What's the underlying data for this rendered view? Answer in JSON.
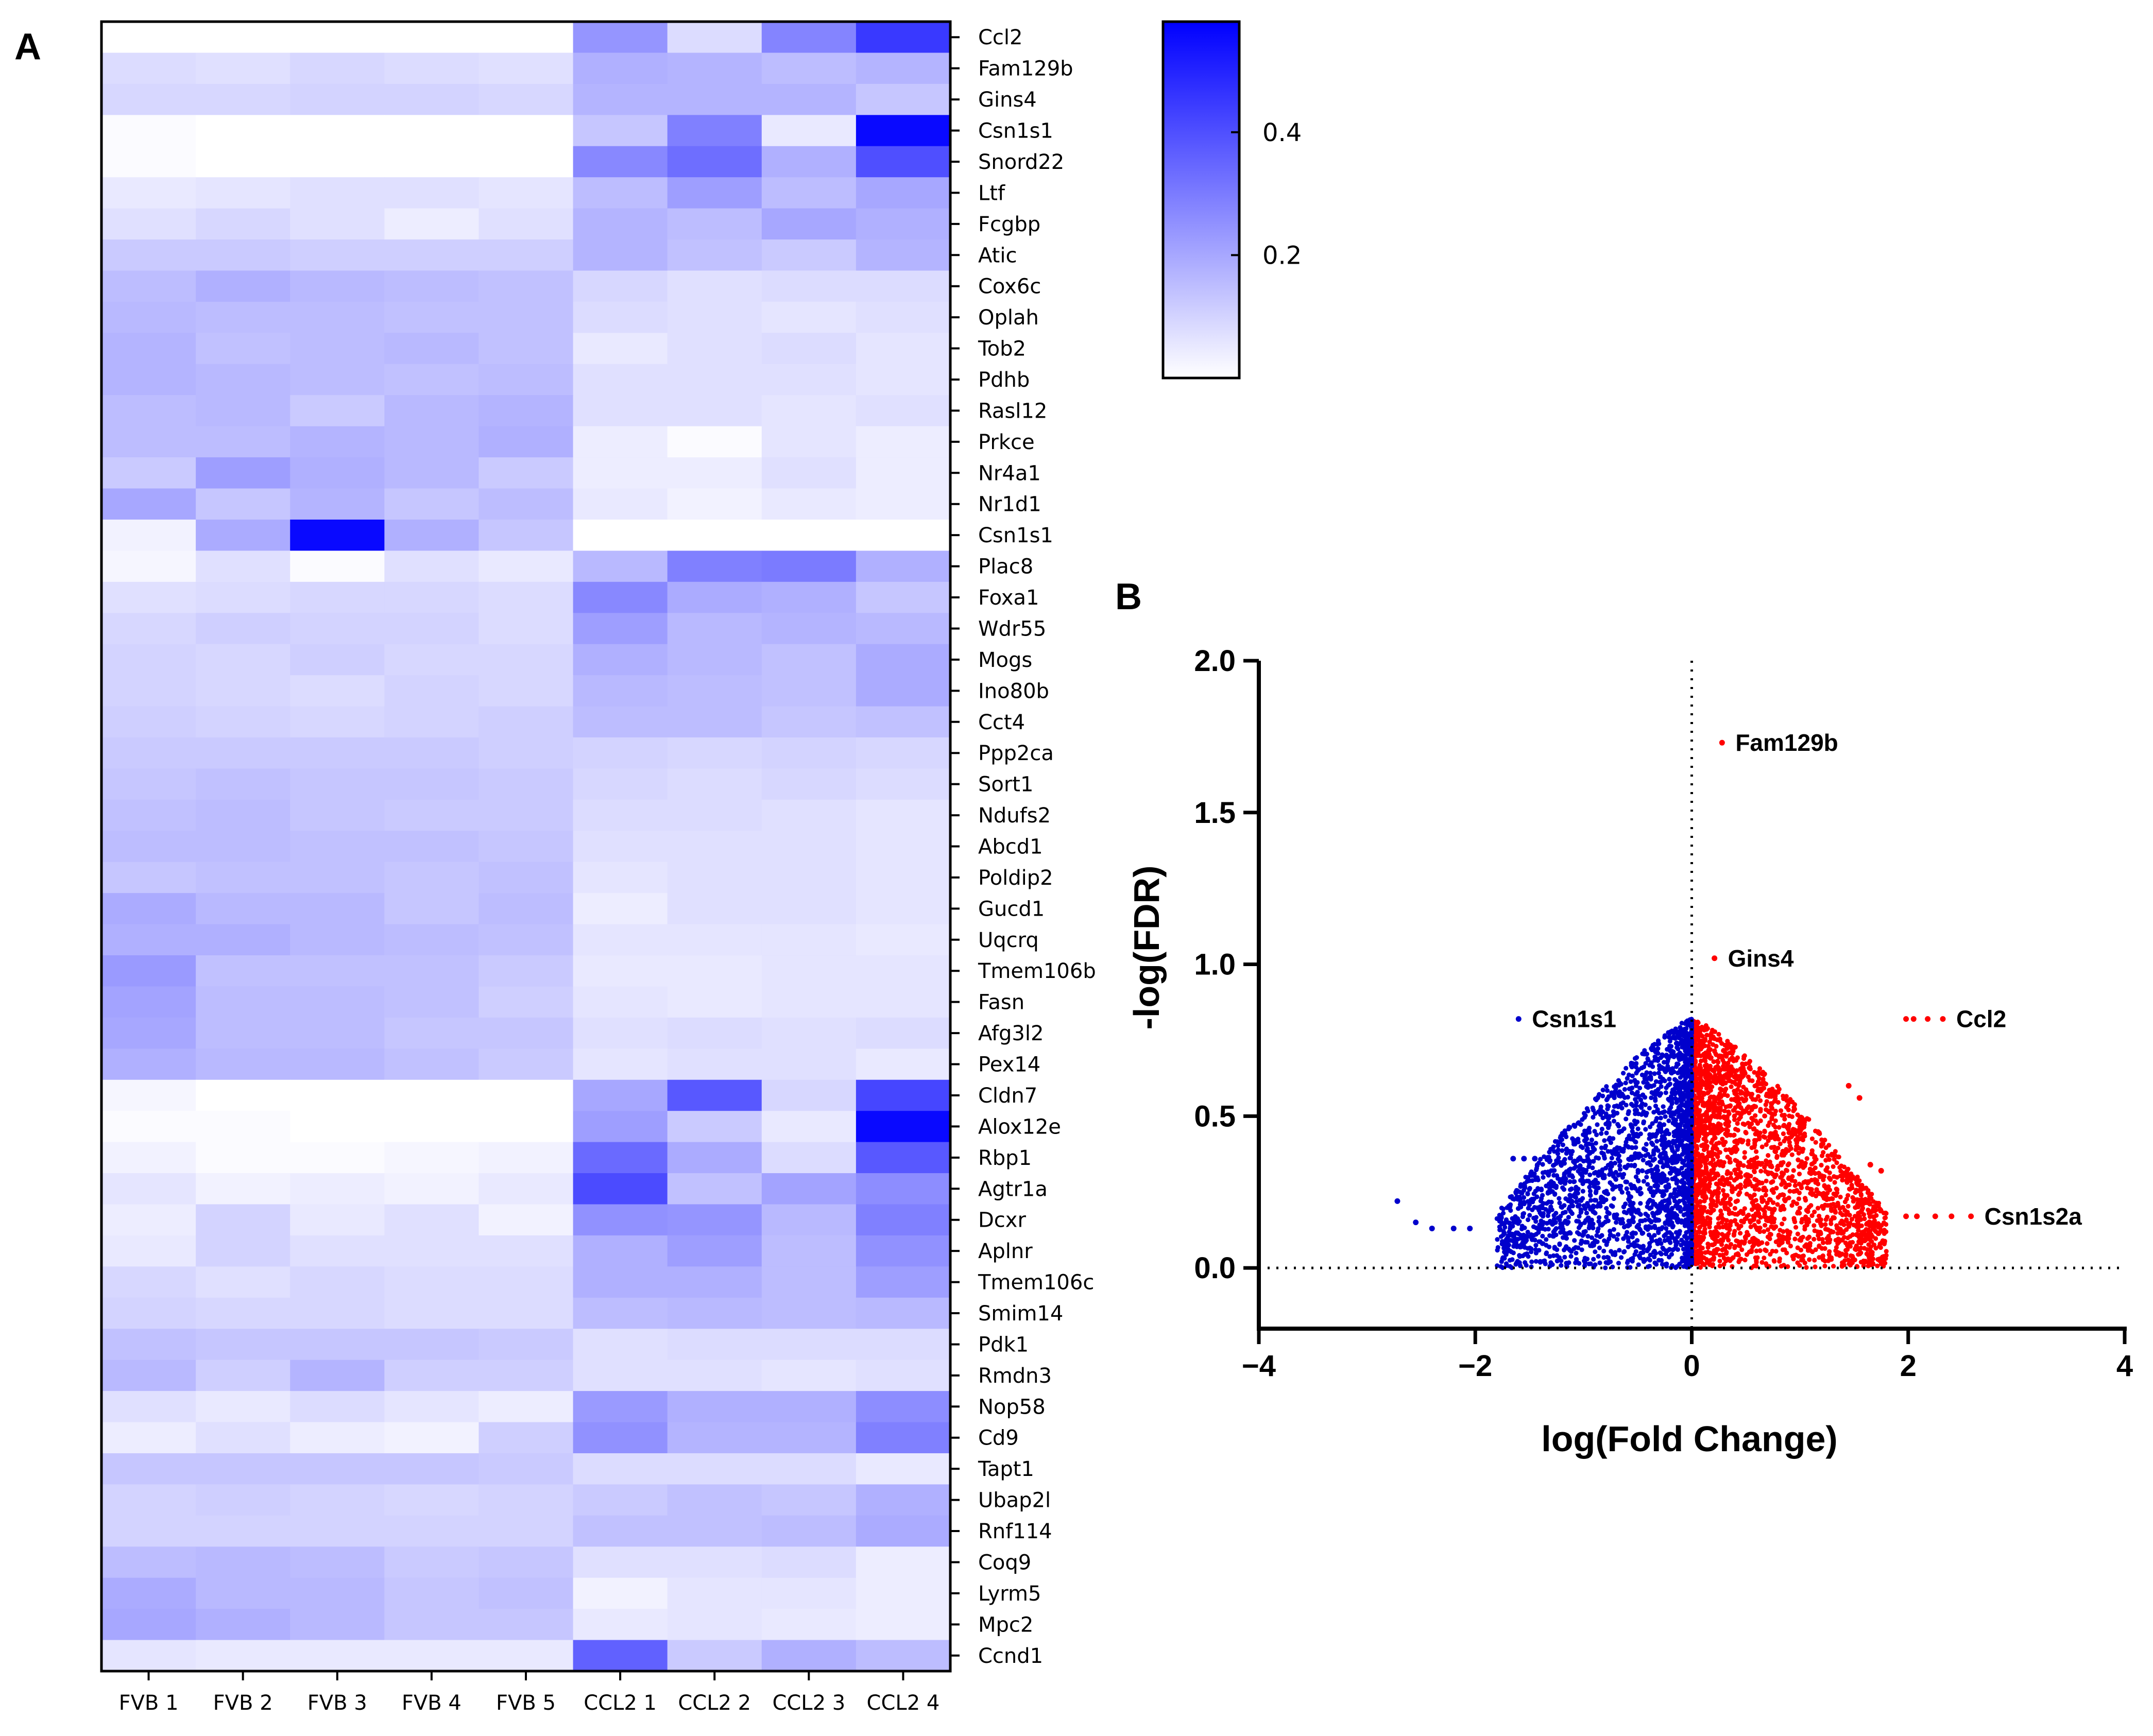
{
  "panels": {
    "a_label": "A",
    "b_label": "B"
  },
  "colors": {
    "low": "#ffffff",
    "high": "#0000ff",
    "up": "#ff0000",
    "down": "#0000cc"
  },
  "chart_data": [
    {
      "type": "heatmap",
      "title": "",
      "columns": [
        "FVB 1",
        "FVB 2",
        "FVB 3",
        "FVB 4",
        "FVB 5",
        "CCL2 1",
        "CCL2 2",
        "CCL2 3",
        "CCL2 4"
      ],
      "rows": [
        "Ccl2",
        "Fam129b",
        "Gins4",
        "Csn1s1",
        "Snord22",
        "Ltf",
        "Fcgbp",
        "Atic",
        "Cox6c",
        "Oplah",
        "Tob2",
        "Pdhb",
        "Rasl12",
        "Prkce",
        "Nr4a1",
        "Nr1d1",
        "Csn1s1",
        "Plac8",
        "Foxa1",
        "Wdr55",
        "Mogs",
        "Ino80b",
        "Cct4",
        "Ppp2ca",
        "Sort1",
        "Ndufs2",
        "Abcd1",
        "Poldip2",
        "Gucd1",
        "Uqcrq",
        "Tmem106b",
        "Fasn",
        "Afg3l2",
        "Pex14",
        "Cldn7",
        "Alox12e",
        "Rbp1",
        "Agtr1a",
        "Dcxr",
        "Aplnr",
        "Tmem106c",
        "Smim14",
        "Pdk1",
        "Rmdn3",
        "Nop58",
        "Cd9",
        "Tapt1",
        "Ubap2l",
        "Rnf114",
        "Coq9",
        "Lyrm5",
        "Mpc2",
        "Ccnd1"
      ],
      "values": [
        [
          0.0,
          0.0,
          0.0,
          0.0,
          0.0,
          0.24,
          0.08,
          0.28,
          0.45
        ],
        [
          0.08,
          0.07,
          0.09,
          0.08,
          0.07,
          0.18,
          0.17,
          0.15,
          0.17
        ],
        [
          0.09,
          0.09,
          0.1,
          0.1,
          0.09,
          0.17,
          0.17,
          0.17,
          0.13
        ],
        [
          0.01,
          0.0,
          0.0,
          0.0,
          0.0,
          0.13,
          0.29,
          0.05,
          0.56
        ],
        [
          0.01,
          0.0,
          0.0,
          0.0,
          0.0,
          0.27,
          0.33,
          0.18,
          0.4
        ],
        [
          0.05,
          0.06,
          0.07,
          0.07,
          0.06,
          0.15,
          0.22,
          0.15,
          0.2
        ],
        [
          0.07,
          0.09,
          0.07,
          0.04,
          0.07,
          0.17,
          0.15,
          0.2,
          0.18
        ],
        [
          0.12,
          0.12,
          0.11,
          0.11,
          0.11,
          0.17,
          0.14,
          0.12,
          0.17
        ],
        [
          0.15,
          0.18,
          0.16,
          0.15,
          0.14,
          0.09,
          0.07,
          0.08,
          0.08
        ],
        [
          0.16,
          0.15,
          0.15,
          0.14,
          0.14,
          0.08,
          0.07,
          0.06,
          0.07
        ],
        [
          0.17,
          0.14,
          0.15,
          0.16,
          0.14,
          0.05,
          0.07,
          0.08,
          0.06
        ],
        [
          0.17,
          0.16,
          0.15,
          0.14,
          0.15,
          0.07,
          0.07,
          0.07,
          0.06
        ],
        [
          0.15,
          0.16,
          0.12,
          0.16,
          0.17,
          0.07,
          0.07,
          0.06,
          0.07
        ],
        [
          0.15,
          0.15,
          0.17,
          0.16,
          0.18,
          0.04,
          0.01,
          0.06,
          0.04
        ],
        [
          0.12,
          0.22,
          0.18,
          0.16,
          0.12,
          0.04,
          0.04,
          0.07,
          0.04
        ],
        [
          0.2,
          0.13,
          0.17,
          0.13,
          0.15,
          0.05,
          0.03,
          0.05,
          0.04
        ],
        [
          0.03,
          0.19,
          0.56,
          0.18,
          0.13,
          0.0,
          0.0,
          0.0,
          0.0
        ],
        [
          0.02,
          0.07,
          0.01,
          0.07,
          0.05,
          0.16,
          0.29,
          0.3,
          0.18
        ],
        [
          0.07,
          0.08,
          0.09,
          0.09,
          0.08,
          0.27,
          0.19,
          0.18,
          0.13
        ],
        [
          0.09,
          0.11,
          0.1,
          0.1,
          0.08,
          0.22,
          0.16,
          0.17,
          0.16
        ],
        [
          0.1,
          0.09,
          0.11,
          0.09,
          0.09,
          0.18,
          0.16,
          0.14,
          0.19
        ],
        [
          0.1,
          0.09,
          0.08,
          0.1,
          0.09,
          0.16,
          0.15,
          0.14,
          0.19
        ],
        [
          0.11,
          0.1,
          0.09,
          0.1,
          0.11,
          0.15,
          0.15,
          0.13,
          0.14
        ],
        [
          0.12,
          0.12,
          0.12,
          0.12,
          0.11,
          0.1,
          0.09,
          0.1,
          0.09
        ],
        [
          0.13,
          0.14,
          0.13,
          0.13,
          0.12,
          0.09,
          0.08,
          0.09,
          0.08
        ],
        [
          0.14,
          0.15,
          0.13,
          0.12,
          0.12,
          0.08,
          0.08,
          0.07,
          0.06
        ],
        [
          0.15,
          0.15,
          0.14,
          0.14,
          0.13,
          0.07,
          0.07,
          0.07,
          0.06
        ],
        [
          0.13,
          0.14,
          0.14,
          0.13,
          0.14,
          0.06,
          0.07,
          0.07,
          0.06
        ],
        [
          0.19,
          0.16,
          0.16,
          0.13,
          0.15,
          0.04,
          0.07,
          0.07,
          0.06
        ],
        [
          0.18,
          0.18,
          0.16,
          0.15,
          0.14,
          0.06,
          0.06,
          0.06,
          0.05
        ],
        [
          0.23,
          0.14,
          0.14,
          0.14,
          0.12,
          0.05,
          0.05,
          0.06,
          0.06
        ],
        [
          0.21,
          0.15,
          0.15,
          0.14,
          0.11,
          0.06,
          0.05,
          0.06,
          0.06
        ],
        [
          0.2,
          0.15,
          0.15,
          0.13,
          0.13,
          0.07,
          0.08,
          0.07,
          0.08
        ],
        [
          0.18,
          0.16,
          0.16,
          0.14,
          0.12,
          0.06,
          0.07,
          0.07,
          0.05
        ],
        [
          0.02,
          0.0,
          0.0,
          0.0,
          0.0,
          0.2,
          0.38,
          0.09,
          0.42
        ],
        [
          0.01,
          0.01,
          0.0,
          0.0,
          0.0,
          0.22,
          0.12,
          0.05,
          0.56
        ],
        [
          0.03,
          0.01,
          0.01,
          0.02,
          0.03,
          0.34,
          0.19,
          0.08,
          0.38
        ],
        [
          0.06,
          0.03,
          0.04,
          0.03,
          0.05,
          0.41,
          0.14,
          0.21,
          0.26
        ],
        [
          0.04,
          0.1,
          0.05,
          0.07,
          0.03,
          0.25,
          0.24,
          0.16,
          0.29
        ],
        [
          0.05,
          0.1,
          0.07,
          0.07,
          0.07,
          0.18,
          0.22,
          0.15,
          0.25
        ],
        [
          0.09,
          0.07,
          0.09,
          0.08,
          0.08,
          0.18,
          0.18,
          0.15,
          0.22
        ],
        [
          0.1,
          0.09,
          0.09,
          0.08,
          0.08,
          0.15,
          0.16,
          0.15,
          0.16
        ],
        [
          0.14,
          0.13,
          0.13,
          0.13,
          0.12,
          0.07,
          0.08,
          0.08,
          0.08
        ],
        [
          0.16,
          0.11,
          0.17,
          0.11,
          0.11,
          0.07,
          0.07,
          0.06,
          0.07
        ],
        [
          0.07,
          0.05,
          0.08,
          0.06,
          0.04,
          0.23,
          0.18,
          0.18,
          0.26
        ],
        [
          0.04,
          0.07,
          0.04,
          0.03,
          0.11,
          0.25,
          0.17,
          0.17,
          0.29
        ],
        [
          0.13,
          0.13,
          0.13,
          0.13,
          0.12,
          0.08,
          0.08,
          0.08,
          0.05
        ],
        [
          0.1,
          0.11,
          0.1,
          0.09,
          0.1,
          0.12,
          0.14,
          0.13,
          0.18
        ],
        [
          0.1,
          0.1,
          0.1,
          0.1,
          0.1,
          0.14,
          0.14,
          0.15,
          0.19
        ],
        [
          0.15,
          0.16,
          0.15,
          0.12,
          0.13,
          0.07,
          0.07,
          0.08,
          0.04
        ],
        [
          0.19,
          0.16,
          0.16,
          0.13,
          0.14,
          0.03,
          0.06,
          0.06,
          0.04
        ],
        [
          0.2,
          0.18,
          0.16,
          0.13,
          0.13,
          0.05,
          0.06,
          0.05,
          0.04
        ],
        [
          0.06,
          0.05,
          0.05,
          0.05,
          0.05,
          0.36,
          0.12,
          0.18,
          0.15
        ]
      ],
      "colorbar": {
        "ticks": [
          0.2,
          0.4
        ],
        "tick_labels": [
          "0.2",
          "0.4"
        ],
        "range": [
          0.0,
          0.58
        ]
      }
    },
    {
      "type": "scatter",
      "title": "",
      "xlabel": "log(Fold Change)",
      "ylabel": "-log(FDR)",
      "xlim": [
        -4,
        4
      ],
      "ylim": [
        -0.2,
        2.0
      ],
      "xticks": [
        -4,
        -2,
        0,
        2,
        4
      ],
      "xtick_labels": [
        "−4",
        "−2",
        "0",
        "2",
        "4"
      ],
      "yticks": [
        0.0,
        0.5,
        1.0,
        1.5,
        2.0
      ],
      "ytick_labels": [
        "0.0",
        "0.5",
        "1.0",
        "1.5",
        "2.0"
      ],
      "reference_lines": {
        "x": 0,
        "y": 0
      },
      "annotations": [
        {
          "label": "Fam129b",
          "x": 0.28,
          "y": 1.73
        },
        {
          "label": "Gins4",
          "x": 0.21,
          "y": 1.02
        },
        {
          "label": "Csn1s1",
          "x": -1.6,
          "y": 0.82
        },
        {
          "label": "Ccl2",
          "x": 2.32,
          "y": 0.82
        },
        {
          "label": "Csn1s2a",
          "x": 2.58,
          "y": 0.17
        }
      ],
      "highlight_points": [
        {
          "x": 0.28,
          "y": 1.73
        },
        {
          "x": 0.21,
          "y": 1.02
        },
        {
          "x": -1.6,
          "y": 0.82
        },
        {
          "x": 2.32,
          "y": 0.82
        },
        {
          "x": 2.18,
          "y": 0.82
        },
        {
          "x": 2.05,
          "y": 0.82
        },
        {
          "x": 1.98,
          "y": 0.82
        },
        {
          "x": 2.58,
          "y": 0.17
        },
        {
          "x": 2.4,
          "y": 0.17
        },
        {
          "x": 2.25,
          "y": 0.17
        },
        {
          "x": 2.08,
          "y": 0.17
        },
        {
          "x": 1.98,
          "y": 0.17
        },
        {
          "x": -2.72,
          "y": 0.22
        },
        {
          "x": -2.55,
          "y": 0.15
        },
        {
          "x": -2.4,
          "y": 0.13
        },
        {
          "x": -2.2,
          "y": 0.13
        },
        {
          "x": -2.05,
          "y": 0.13
        },
        {
          "x": -1.65,
          "y": 0.36
        },
        {
          "x": -1.55,
          "y": 0.36
        },
        {
          "x": -1.45,
          "y": 0.36
        },
        {
          "x": 1.45,
          "y": 0.6
        },
        {
          "x": 1.55,
          "y": 0.56
        },
        {
          "x": 1.75,
          "y": 0.32
        },
        {
          "x": 1.65,
          "y": 0.34
        }
      ],
      "series": [
        {
          "name": "",
          "color": "#ff0000",
          "x_range": [
            0.0,
            1.8
          ],
          "y_range": [
            0.0,
            0.82
          ],
          "count": 2600
        },
        {
          "name": "",
          "color": "#0000cc",
          "x_range": [
            -1.8,
            0.0
          ],
          "y_range": [
            0.0,
            0.82
          ],
          "count": 2400
        }
      ]
    }
  ]
}
